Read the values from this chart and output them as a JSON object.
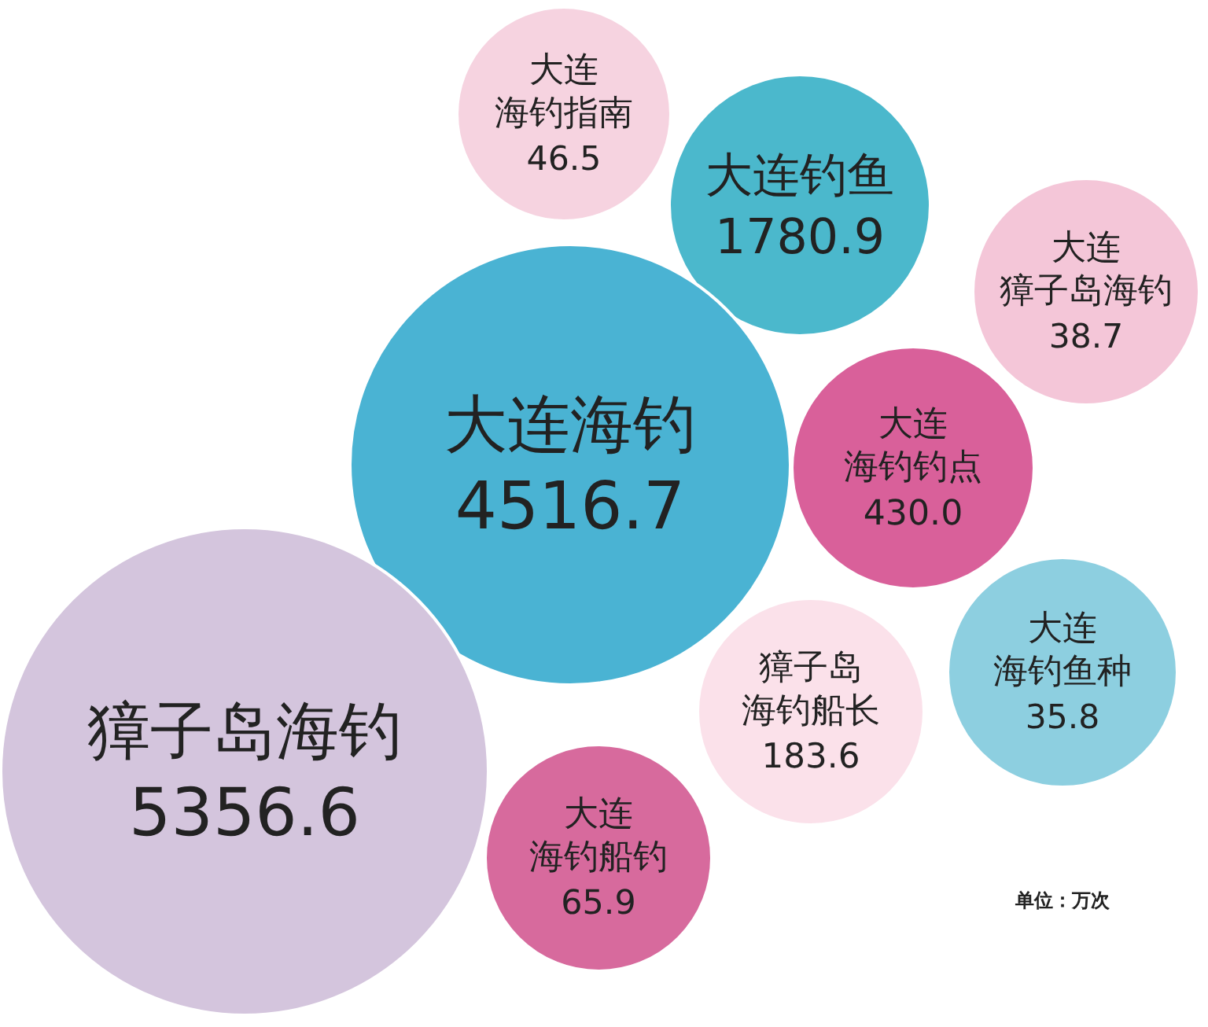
{
  "chart_data": {
    "type": "other",
    "categories": [
      "大连海钓指南",
      "大连钓鱼",
      "大连獐子岛海钓",
      "大连海钓",
      "大连海钓钓点",
      "大连海钓鱼种",
      "獐子岛海钓船长",
      "大连海钓船钓",
      "獐子岛海钓"
    ],
    "values": [
      46.5,
      1780.9,
      38.7,
      4516.7,
      430.0,
      35.8,
      183.6,
      65.9,
      5356.6
    ],
    "colors": [
      "#f6d3e0",
      "#4bb8cc",
      "#f4c6d8",
      "#4ab3d3",
      "#d9609a",
      "#8dcfe0",
      "#fbe1ea",
      "#d76a9d",
      "#d4c5dd"
    ],
    "value_labels": [
      "46.5",
      "1780.9",
      "38.7",
      "4516.7",
      "430.0",
      "35.8",
      "183.6",
      "65.9",
      "5356.6"
    ],
    "annotations": [
      "单位：万次"
    ]
  }
}
